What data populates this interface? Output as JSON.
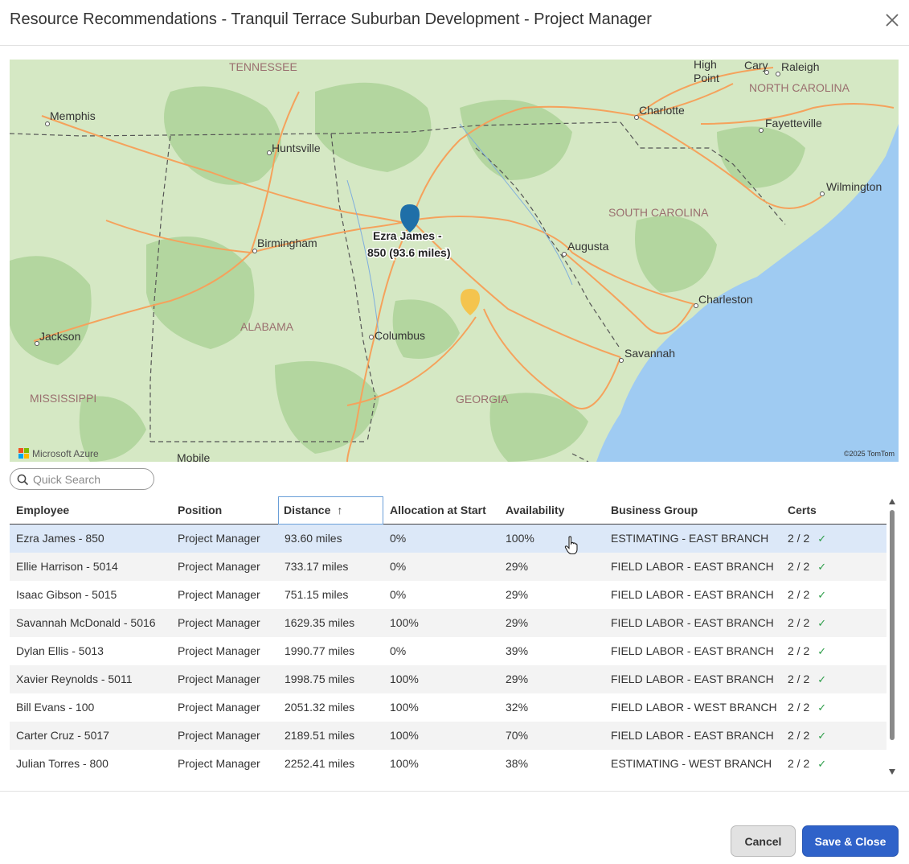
{
  "dialog": {
    "title": "Resource Recommendations - Tranquil Terrace Suburban Development - Project Manager",
    "close_icon": "close-icon"
  },
  "map": {
    "labels": {
      "tennessee": "TENNESSEE",
      "north_carolina": "NORTH CAROLINA",
      "south_carolina": "SOUTH CAROLINA",
      "alabama": "ALABAMA",
      "georgia": "GEORGIA",
      "mississippi": "MISSISSIPPI",
      "memphis": "Memphis",
      "huntsville": "Huntsville",
      "birmingham": "Birmingham",
      "jackson": "Jackson",
      "columbus": "Columbus",
      "mobile": "Mobile",
      "augusta": "Augusta",
      "charleston": "Charleston",
      "savannah": "Savannah",
      "charlotte": "Charlotte",
      "high_point_1": "High",
      "high_point_2": "Point",
      "cary": "Cary",
      "raleigh": "Raleigh",
      "fayetteville": "Fayetteville",
      "wilmington": "Wilmington"
    },
    "marker_label_line1": "Ezra James -",
    "marker_label_line2": "850 (93.6 miles)",
    "attribution_left": "Microsoft Azure",
    "attribution_right": "©2025 TomTom",
    "colors": {
      "land": "#d5e8c4",
      "forest": "#b3d69f",
      "water": "#9fcbf2",
      "road": "#f5a25c",
      "marker_primary": "#1f6fa8",
      "marker_secondary": "#f4c44e"
    }
  },
  "search": {
    "placeholder": "Quick Search",
    "value": ""
  },
  "table": {
    "columns": {
      "employee": "Employee",
      "position": "Position",
      "distance": "Distance",
      "allocation": "Allocation at Start",
      "availability": "Availability",
      "business_group": "Business Group",
      "certs": "Certs"
    },
    "sort_indicator": "↑",
    "rows": [
      {
        "employee": "Ezra James - 850",
        "position": "Project Manager",
        "distance": "93.60 miles",
        "allocation": "0%",
        "availability": "100%",
        "business_group": "ESTIMATING - EAST BRANCH",
        "certs": "2 / 2"
      },
      {
        "employee": "Ellie Harrison - 5014",
        "position": "Project Manager",
        "distance": "733.17 miles",
        "allocation": "0%",
        "availability": "29%",
        "business_group": "FIELD LABOR - EAST BRANCH",
        "certs": "2 / 2"
      },
      {
        "employee": "Isaac Gibson - 5015",
        "position": "Project Manager",
        "distance": "751.15 miles",
        "allocation": "0%",
        "availability": "29%",
        "business_group": "FIELD LABOR - EAST BRANCH",
        "certs": "2 / 2"
      },
      {
        "employee": "Savannah McDonald - 5016",
        "position": "Project Manager",
        "distance": "1629.35 miles",
        "allocation": "100%",
        "availability": "29%",
        "business_group": "FIELD LABOR - EAST BRANCH",
        "certs": "2 / 2"
      },
      {
        "employee": "Dylan Ellis - 5013",
        "position": "Project Manager",
        "distance": "1990.77 miles",
        "allocation": "0%",
        "availability": "39%",
        "business_group": "FIELD LABOR - EAST BRANCH",
        "certs": "2 / 2"
      },
      {
        "employee": "Xavier Reynolds - 5011",
        "position": "Project Manager",
        "distance": "1998.75 miles",
        "allocation": "100%",
        "availability": "29%",
        "business_group": "FIELD LABOR - EAST BRANCH",
        "certs": "2 / 2"
      },
      {
        "employee": "Bill Evans - 100",
        "position": "Project Manager",
        "distance": "2051.32 miles",
        "allocation": "100%",
        "availability": "32%",
        "business_group": "FIELD LABOR - WEST BRANCH",
        "certs": "2 / 2"
      },
      {
        "employee": "Carter Cruz - 5017",
        "position": "Project Manager",
        "distance": "2189.51 miles",
        "allocation": "100%",
        "availability": "70%",
        "business_group": "FIELD LABOR - EAST BRANCH",
        "certs": "2 / 2"
      },
      {
        "employee": "Julian Torres - 800",
        "position": "Project Manager",
        "distance": "2252.41 miles",
        "allocation": "100%",
        "availability": "38%",
        "business_group": "ESTIMATING - WEST BRANCH",
        "certs": "2 / 2"
      }
    ]
  },
  "footer": {
    "cancel_label": "Cancel",
    "save_label": "Save & Close"
  }
}
